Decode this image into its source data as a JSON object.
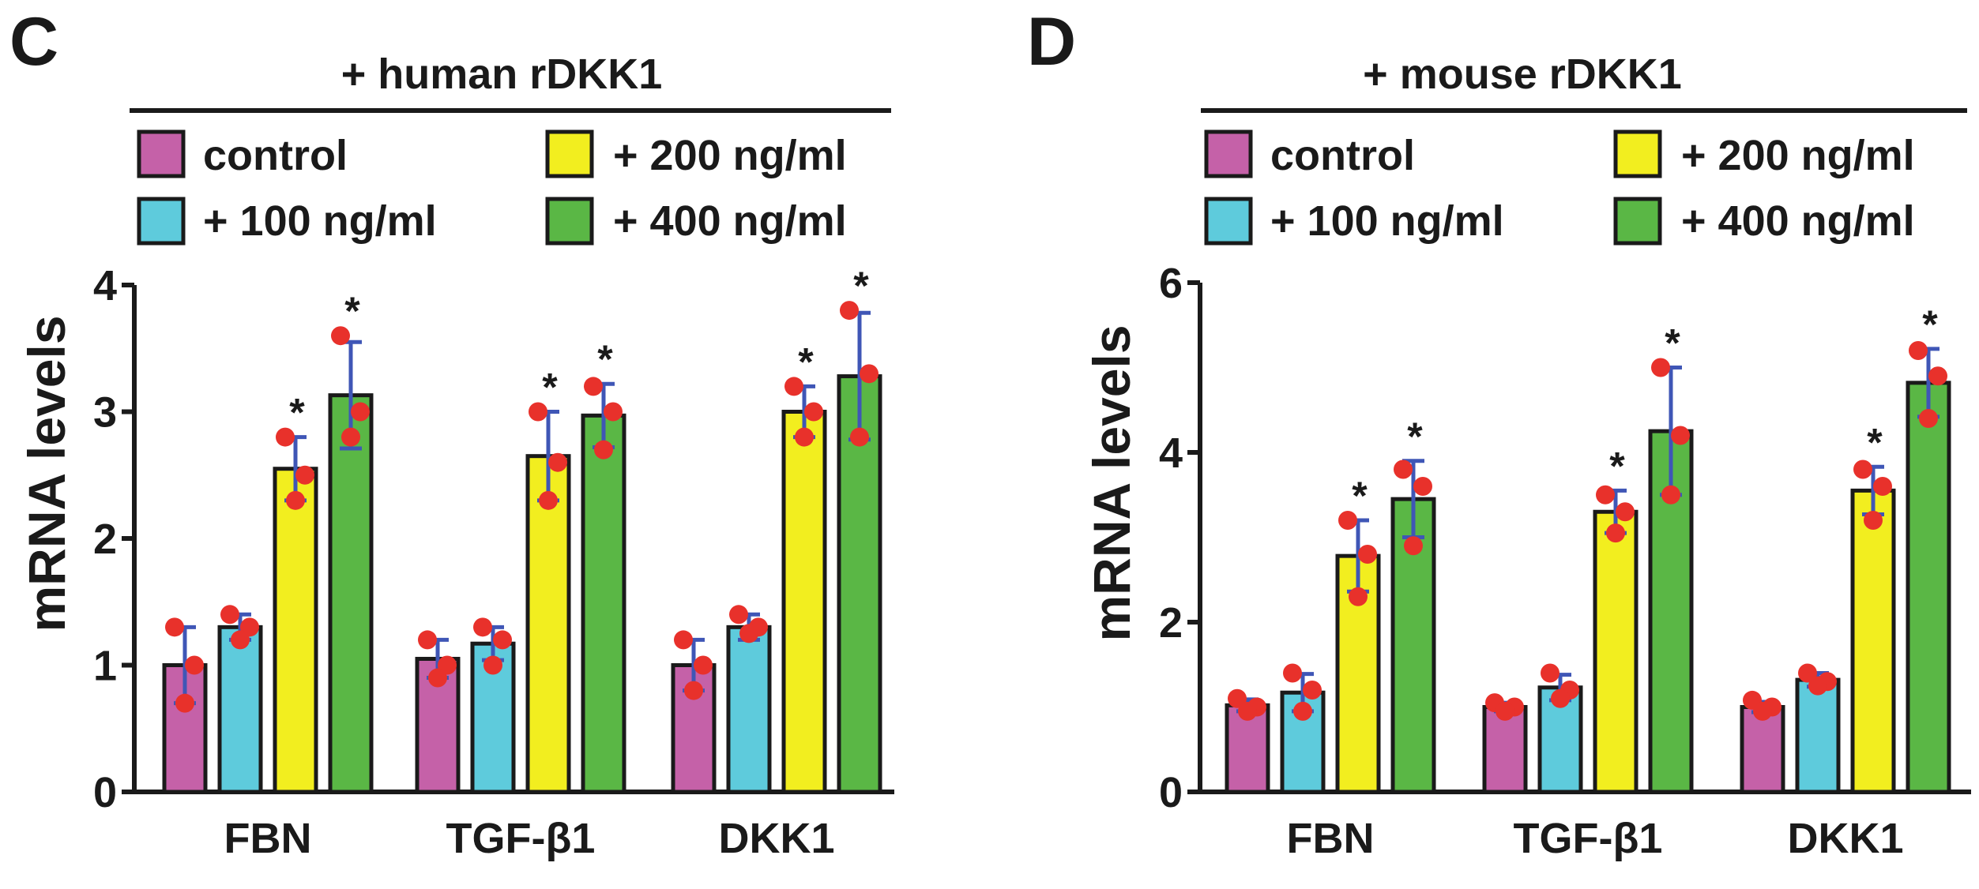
{
  "chart_data": [
    {
      "type": "bar",
      "panel_letter": "C",
      "title": "+ human rDKK1",
      "ylabel": "mRNA levels",
      "xlabel": "",
      "ylim": [
        0,
        4
      ],
      "yticks": [
        0,
        1,
        2,
        3,
        4
      ],
      "categories": [
        "FBN",
        "TGF-β1",
        "DKK1"
      ],
      "legend_position": "top",
      "series": [
        {
          "name": "control",
          "color": "#c561a8",
          "values": [
            1.0,
            1.05,
            1.0
          ],
          "errors": [
            0.3,
            0.15,
            0.2
          ],
          "points": [
            [
              1.3,
              1.0,
              0.7
            ],
            [
              1.2,
              1.0,
              0.9
            ],
            [
              1.2,
              1.0,
              0.8
            ]
          ],
          "significant": [
            false,
            false,
            false
          ]
        },
        {
          "name": "+ 100 ng/ml",
          "color": "#5ecbdc",
          "values": [
            1.3,
            1.17,
            1.3
          ],
          "errors": [
            0.1,
            0.13,
            0.1
          ],
          "points": [
            [
              1.4,
              1.3,
              1.2
            ],
            [
              1.3,
              1.2,
              1.0
            ],
            [
              1.4,
              1.3,
              1.25
            ]
          ],
          "significant": [
            false,
            false,
            false
          ]
        },
        {
          "name": "+ 200 ng/ml",
          "color": "#f2ee1f",
          "values": [
            2.55,
            2.65,
            3.0
          ],
          "errors": [
            0.25,
            0.35,
            0.2
          ],
          "points": [
            [
              2.8,
              2.5,
              2.3
            ],
            [
              3.0,
              2.6,
              2.3
            ],
            [
              3.2,
              3.0,
              2.8
            ]
          ],
          "significant": [
            true,
            true,
            true
          ]
        },
        {
          "name": "+ 400 ng/ml",
          "color": "#5ab745",
          "values": [
            3.13,
            2.97,
            3.28
          ],
          "errors": [
            0.42,
            0.25,
            0.5
          ],
          "points": [
            [
              3.6,
              3.0,
              2.8
            ],
            [
              3.2,
              3.0,
              2.7
            ],
            [
              3.8,
              3.3,
              2.8
            ]
          ],
          "significant": [
            true,
            true,
            true
          ]
        }
      ]
    },
    {
      "type": "bar",
      "panel_letter": "D",
      "title": "+ mouse rDKK1",
      "ylabel": "mRNA levels",
      "xlabel": "",
      "ylim": [
        0,
        6
      ],
      "yticks": [
        0,
        2,
        4,
        6
      ],
      "categories": [
        "FBN",
        "TGF-β1",
        "DKK1"
      ],
      "legend_position": "top",
      "series": [
        {
          "name": "control",
          "color": "#c561a8",
          "values": [
            1.02,
            1.0,
            1.0
          ],
          "errors": [
            0.07,
            0.05,
            0.06
          ],
          "points": [
            [
              1.1,
              1.0,
              0.95
            ],
            [
              1.05,
              1.0,
              0.95
            ],
            [
              1.08,
              1.0,
              0.95
            ]
          ],
          "significant": [
            false,
            false,
            false
          ]
        },
        {
          "name": "+ 100 ng/ml",
          "color": "#5ecbdc",
          "values": [
            1.17,
            1.23,
            1.32
          ],
          "errors": [
            0.22,
            0.15,
            0.08
          ],
          "points": [
            [
              1.4,
              1.2,
              0.95
            ],
            [
              1.4,
              1.2,
              1.1
            ],
            [
              1.4,
              1.3,
              1.25
            ]
          ],
          "significant": [
            false,
            false,
            false
          ]
        },
        {
          "name": "+ 200 ng/ml",
          "color": "#f2ee1f",
          "values": [
            2.78,
            3.3,
            3.55
          ],
          "errors": [
            0.42,
            0.25,
            0.28
          ],
          "points": [
            [
              3.2,
              2.8,
              2.3
            ],
            [
              3.5,
              3.3,
              3.05
            ],
            [
              3.8,
              3.6,
              3.2
            ]
          ],
          "significant": [
            true,
            true,
            true
          ]
        },
        {
          "name": "+ 400 ng/ml",
          "color": "#5ab745",
          "values": [
            3.45,
            4.25,
            4.82
          ],
          "errors": [
            0.45,
            0.75,
            0.4
          ],
          "points": [
            [
              3.8,
              3.6,
              2.9
            ],
            [
              5.0,
              4.2,
              3.5
            ],
            [
              5.2,
              4.9,
              4.4
            ]
          ],
          "significant": [
            true,
            true,
            true
          ]
        }
      ]
    }
  ],
  "significance_marker": "*"
}
